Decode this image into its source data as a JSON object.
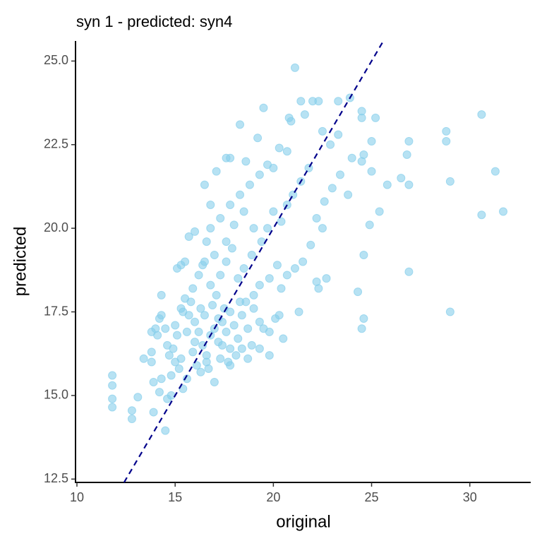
{
  "chart_data": {
    "type": "scatter",
    "title": "syn 1 - predicted: syn4",
    "x_label": "original",
    "y_label": "predicted",
    "xlim": [
      10,
      33.1
    ],
    "ylim": [
      12.4,
      25.6
    ],
    "xticks": [
      10,
      15,
      20,
      25,
      30
    ],
    "yticks": [
      {
        "value": 12.5,
        "label": "12.5"
      },
      {
        "value": 15,
        "label": "15.0"
      },
      17.5,
      {
        "value": 20,
        "label": "20.0"
      },
      22.5,
      {
        "value": 25,
        "label": "25.0"
      }
    ],
    "reference_line": {
      "slope": 1,
      "intercept": 0,
      "color": "#00008b"
    },
    "x": [
      11.8,
      11.8,
      11.8,
      11.8,
      12.8,
      12.8,
      13.1,
      13.9,
      14.5,
      14.3,
      15.7,
      15.3,
      15.5,
      15.1,
      16.4,
      16.6,
      16.8,
      16.5,
      17.1,
      17.6,
      17.8,
      18.3,
      18.6,
      19.5,
      19.2,
      20.0,
      20.3,
      20.7,
      21.1,
      20.8,
      20.9,
      21.4,
      21.6,
      22.0,
      22.3,
      22.5,
      22.9,
      23.3,
      23.3,
      23.9,
      24.5,
      24.5,
      25.2,
      24.6,
      25.0,
      24.0,
      24.5,
      25.0,
      26.5,
      25.8,
      26.8,
      26.9,
      28.8,
      28.8,
      26.9,
      29.0,
      30.6,
      31.3,
      30.6,
      31.7,
      25.4,
      24.9,
      26.9,
      24.6,
      24.3,
      29.0,
      24.6,
      24.5,
      21.3,
      22.7,
      22.3,
      22.2,
      20.4,
      20.3,
      20.1,
      20.5,
      19.8,
      19.5,
      19.8,
      18.7,
      18.4,
      17.8,
      17.0,
      16.3,
      15.4,
      15.6,
      14.6,
      14.8,
      14.2,
      14.3,
      13.9,
      13.8,
      13.4,
      13.8,
      14.1,
      14.2,
      14.3,
      14.0,
      13.8,
      14.6,
      14.9,
      15.1,
      15.4,
      15.7,
      15.3,
      15.8,
      16.0,
      16.2,
      16.4,
      16.6,
      16.8,
      17.0,
      17.2,
      17.4,
      17.6,
      17.8,
      18.0,
      18.2,
      18.4,
      18.7,
      19.0,
      19.3,
      17.5,
      17.1,
      16.8,
      17.3,
      17.6,
      17.9,
      18.2,
      18.5,
      18.9,
      19.4,
      19.7,
      20.0,
      20.4,
      20.7,
      21.0,
      21.4,
      21.8,
      22.2,
      22.6,
      23.0,
      23.4,
      23.8,
      22.5,
      21.9,
      21.5,
      21.1,
      20.7,
      20.2,
      19.8,
      19.3,
      19.0,
      18.6,
      17.0,
      16.5,
      16.2,
      15.9,
      15.5,
      16.0,
      16.8,
      17.3,
      17.8,
      18.3,
      18.8,
      19.3,
      19.7,
      18.0,
      18.5,
      19.0,
      17.6,
      15.0,
      14.7,
      15.3,
      15.9,
      16.1,
      16.7,
      17.3,
      17.7,
      18.1,
      18.9,
      19.3,
      15.2,
      14.8,
      16.5,
      16.9,
      17.2,
      17.8,
      18.3,
      16.3,
      15.6,
      15.0,
      14.5,
      16.0,
      16.6,
      17.4
    ],
    "series": [
      {
        "name": "points",
        "color": "#87ceeb",
        "values": [
          15.6,
          15.3,
          14.9,
          14.65,
          14.55,
          14.3,
          14.95,
          14.5,
          13.95,
          18.0,
          19.75,
          18.9,
          19.0,
          18.8,
          18.9,
          19.6,
          20.7,
          21.3,
          21.7,
          22.1,
          22.1,
          23.1,
          22.0,
          23.6,
          22.7,
          21.8,
          22.4,
          22.3,
          24.8,
          23.3,
          23.2,
          23.8,
          23.4,
          23.8,
          23.8,
          22.9,
          22.5,
          22.8,
          23.8,
          23.9,
          23.3,
          23.5,
          23.3,
          22.2,
          22.6,
          22.1,
          22.0,
          21.7,
          21.5,
          21.3,
          22.2,
          22.6,
          22.9,
          22.6,
          21.3,
          21.4,
          23.4,
          21.7,
          20.4,
          20.5,
          20.5,
          20.1,
          18.7,
          19.2,
          18.1,
          17.5,
          17.3,
          17.0,
          17.5,
          18.5,
          18.2,
          18.4,
          18.2,
          17.4,
          17.3,
          16.7,
          16.9,
          17.0,
          16.2,
          16.1,
          16.4,
          15.9,
          15.4,
          15.7,
          15.2,
          15.5,
          14.9,
          15.0,
          15.1,
          15.5,
          15.4,
          16.0,
          16.1,
          16.3,
          16.8,
          17.3,
          17.4,
          17.0,
          16.9,
          16.5,
          16.4,
          16.8,
          17.5,
          17.4,
          17.6,
          17.8,
          17.2,
          16.9,
          16.5,
          16.2,
          16.8,
          17.0,
          16.6,
          17.2,
          16.9,
          16.4,
          17.1,
          16.7,
          17.4,
          17.0,
          17.6,
          16.4,
          17.6,
          18.0,
          18.3,
          18.6,
          19.0,
          19.4,
          18.5,
          18.8,
          19.2,
          19.6,
          20.0,
          20.5,
          20.2,
          20.7,
          21.0,
          21.4,
          21.8,
          20.3,
          20.8,
          21.2,
          21.6,
          21.0,
          20.0,
          19.5,
          19.0,
          18.8,
          18.6,
          18.9,
          18.5,
          18.3,
          18.0,
          17.8,
          19.2,
          19.0,
          18.6,
          18.2,
          17.9,
          19.9,
          20.0,
          20.3,
          20.7,
          21.0,
          21.3,
          21.6,
          21.9,
          20.1,
          20.5,
          20.0,
          19.6,
          16.0,
          16.2,
          16.1,
          16.3,
          15.9,
          15.8,
          16.1,
          16.0,
          16.2,
          16.5,
          17.2,
          15.8,
          15.6,
          17.4,
          17.7,
          17.3,
          17.5,
          17.8,
          17.6,
          16.9,
          17.1,
          17.0,
          16.6,
          16.0,
          16.5
        ]
      }
    ]
  }
}
